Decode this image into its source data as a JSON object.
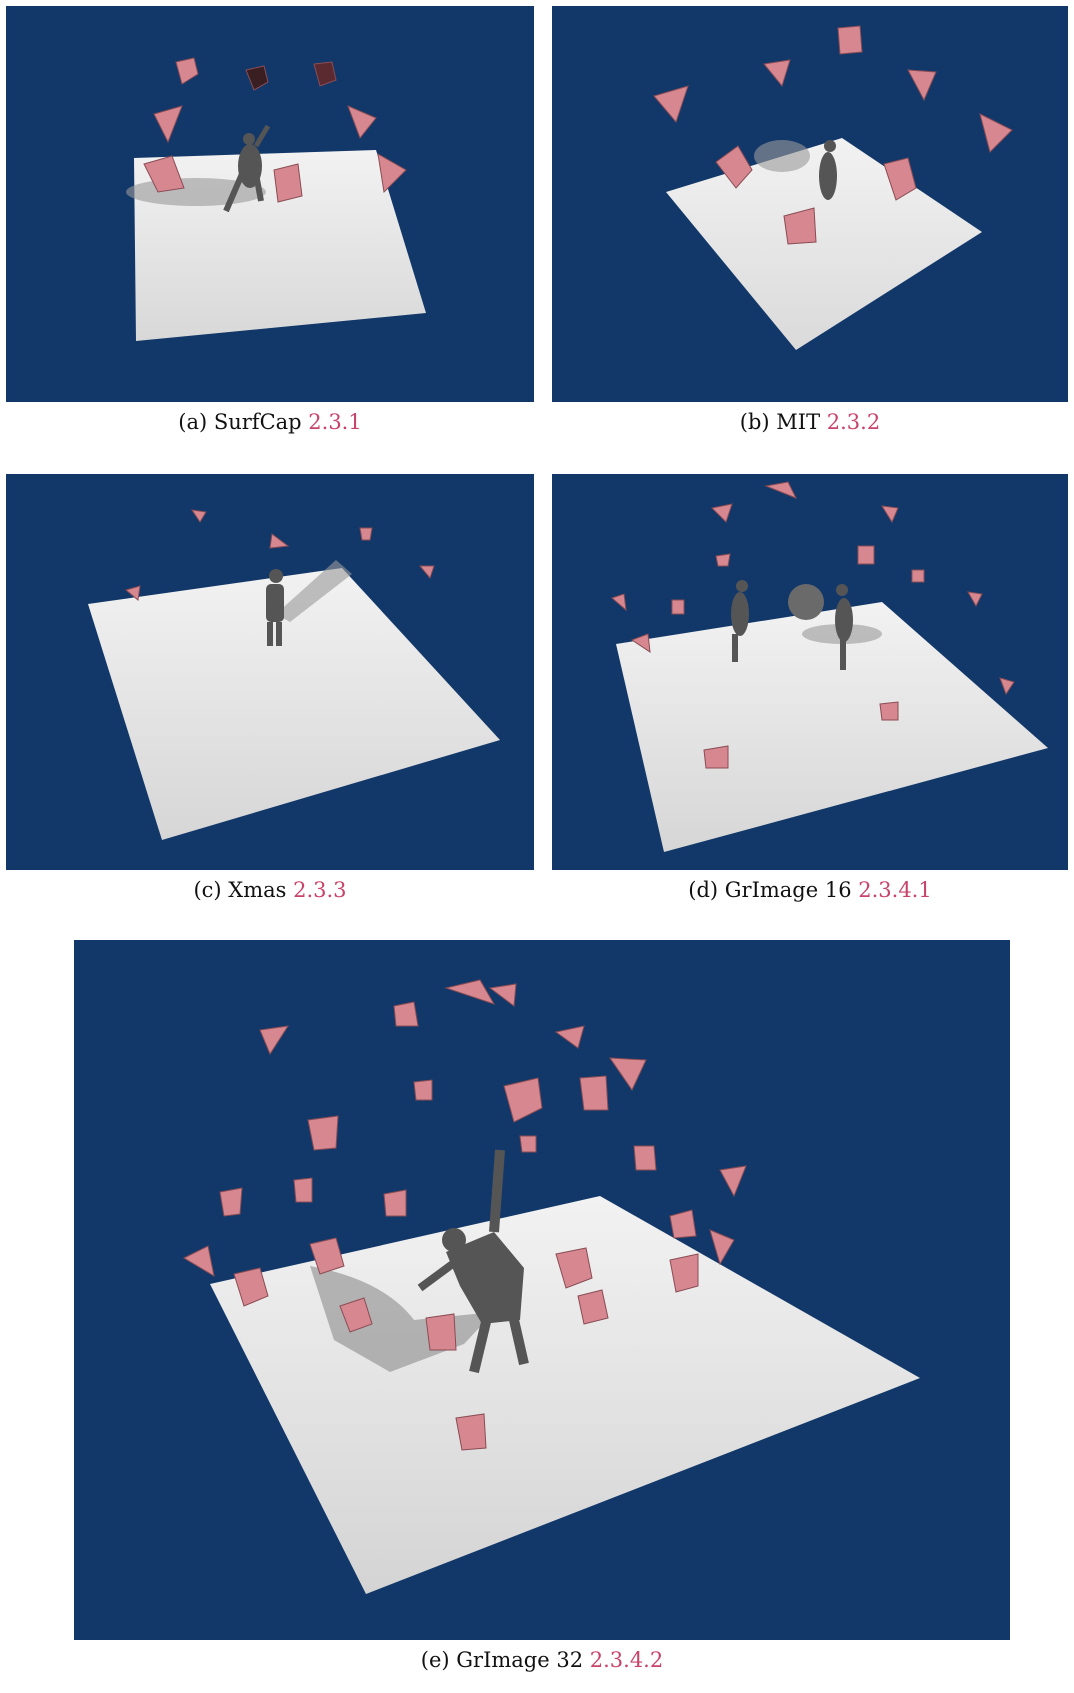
{
  "figure": {
    "colors": {
      "background": "#12386a",
      "floor": "#e8e8e8",
      "camera": "#d6878f",
      "camera_dark": "#3a1f22",
      "figure_gray": "#555555",
      "reference": "#c8436a"
    },
    "panels": [
      {
        "id": "a",
        "prefix": "(a) SurfCap ",
        "ref": "2.3.1"
      },
      {
        "id": "b",
        "prefix": "(b) MIT ",
        "ref": "2.3.2"
      },
      {
        "id": "c",
        "prefix": "(c) Xmas ",
        "ref": "2.3.3"
      },
      {
        "id": "d",
        "prefix": "(d) GrImage 16 ",
        "ref": "2.3.4.1"
      },
      {
        "id": "e",
        "prefix": "(e) GrImage 32 ",
        "ref": "2.3.4.2"
      }
    ]
  }
}
